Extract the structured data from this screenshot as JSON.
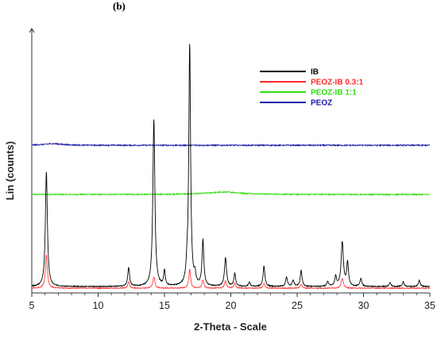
{
  "chart_data": {
    "type": "line",
    "panel_label": "(b)",
    "xlabel": "2-Theta - Scale",
    "ylabel": "Lin (counts)",
    "xlim": [
      5,
      35
    ],
    "x_ticks": [
      "5",
      "10",
      "15",
      "20",
      "25",
      "30",
      "35"
    ],
    "legend_position": "top-right",
    "series": [
      {
        "name": "IB",
        "color": "#000000",
        "baseline": 8,
        "peaks": [
          {
            "x": 6.1,
            "h": 145,
            "w": 0.09
          },
          {
            "x": 12.3,
            "h": 24,
            "w": 0.08
          },
          {
            "x": 14.2,
            "h": 211,
            "w": 0.09
          },
          {
            "x": 15.0,
            "h": 19,
            "w": 0.07
          },
          {
            "x": 16.7,
            "h": 16,
            "w": 0.08
          },
          {
            "x": 16.9,
            "h": 305,
            "w": 0.08
          },
          {
            "x": 17.3,
            "h": 12,
            "w": 0.07
          },
          {
            "x": 17.9,
            "h": 58,
            "w": 0.08
          },
          {
            "x": 19.6,
            "h": 36,
            "w": 0.09
          },
          {
            "x": 20.3,
            "h": 16,
            "w": 0.08
          },
          {
            "x": 21.4,
            "h": 5,
            "w": 0.08
          },
          {
            "x": 22.5,
            "h": 26,
            "w": 0.08
          },
          {
            "x": 24.2,
            "h": 12,
            "w": 0.08
          },
          {
            "x": 24.7,
            "h": 8,
            "w": 0.08
          },
          {
            "x": 25.3,
            "h": 20,
            "w": 0.08
          },
          {
            "x": 27.3,
            "h": 6,
            "w": 0.08
          },
          {
            "x": 27.9,
            "h": 12,
            "w": 0.08
          },
          {
            "x": 28.4,
            "h": 56,
            "w": 0.1
          },
          {
            "x": 28.8,
            "h": 30,
            "w": 0.08
          },
          {
            "x": 29.8,
            "h": 10,
            "w": 0.08
          },
          {
            "x": 32.0,
            "h": 5,
            "w": 0.08
          },
          {
            "x": 33.0,
            "h": 6,
            "w": 0.08
          },
          {
            "x": 34.2,
            "h": 8,
            "w": 0.08
          }
        ]
      },
      {
        "name": "PEOZ-IB 0.3:1",
        "color": "#ff2a2a",
        "baseline": 6,
        "peaks": [
          {
            "x": 6.1,
            "h": 42,
            "w": 0.09
          },
          {
            "x": 12.3,
            "h": 8,
            "w": 0.08
          },
          {
            "x": 14.2,
            "h": 14,
            "w": 0.09
          },
          {
            "x": 16.9,
            "h": 24,
            "w": 0.08
          },
          {
            "x": 17.9,
            "h": 10,
            "w": 0.08
          },
          {
            "x": 19.6,
            "h": 9,
            "w": 0.09
          },
          {
            "x": 20.3,
            "h": 6,
            "w": 0.08
          },
          {
            "x": 22.5,
            "h": 6,
            "w": 0.08
          },
          {
            "x": 25.3,
            "h": 5,
            "w": 0.08
          },
          {
            "x": 28.4,
            "h": 12,
            "w": 0.1
          }
        ]
      },
      {
        "name": "PEOZ-IB 1:1",
        "color": "#33dd11",
        "baseline": 124,
        "peaks": [
          {
            "x": 19.5,
            "h": 3,
            "w": 1.6
          }
        ]
      },
      {
        "name": "PEOZ",
        "color": "#1a1aa6",
        "baseline": 186,
        "peaks": [
          {
            "x": 6.6,
            "h": 2,
            "w": 0.8
          }
        ]
      }
    ]
  }
}
